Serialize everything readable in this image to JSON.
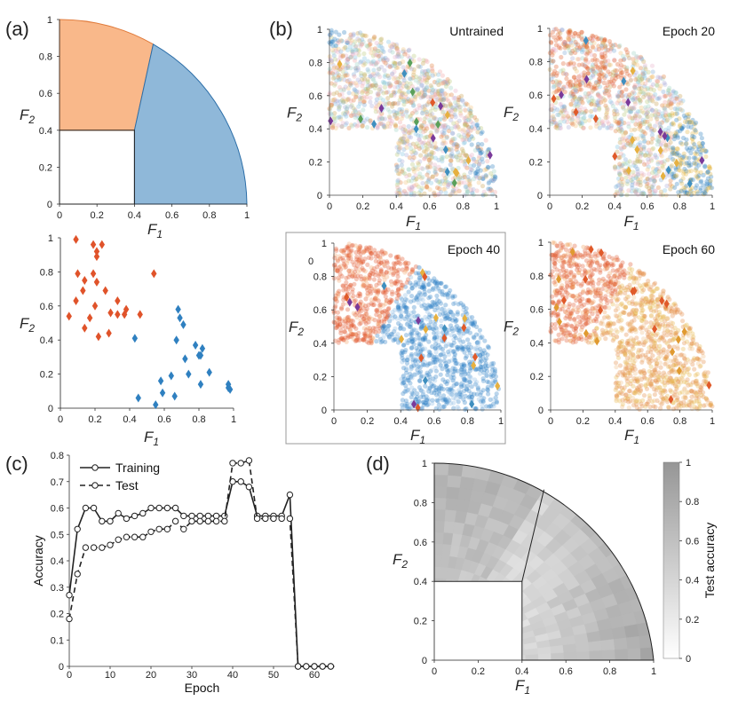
{
  "panels": {
    "a": "(a)",
    "b": "(b)",
    "c": "(c)",
    "d": "(d)"
  },
  "axis_symbols": {
    "f1_main": "F",
    "f1_sub": "1",
    "f2_main": "F",
    "f2_sub": "2"
  },
  "colors": {
    "orange_region": "#f9b88a",
    "blue_region": "#8fb8d9",
    "orange_marker": "#e0532a",
    "blue_marker": "#2f80c0",
    "region_stroke": "#e07a3a",
    "blue_stroke": "#2c6ea8"
  },
  "chart_data": [
    {
      "id": "a_top",
      "type": "region",
      "title": "",
      "xlabel": "F1",
      "ylabel": "F2",
      "xlim": [
        0,
        1
      ],
      "ylim": [
        0,
        1
      ],
      "xticks": [
        "0",
        "0.2",
        "0.4",
        "0.6",
        "0.8",
        "1"
      ],
      "yticks": [
        "0",
        "0.2",
        "0.4",
        "0.6",
        "0.8",
        "1"
      ],
      "regions": [
        {
          "name": "class-orange",
          "condition": "F2 >= 0.4, angle >= 60deg, radius <= 1"
        },
        {
          "name": "class-blue",
          "condition": "F1 >= 0.4, angle <= 60deg, radius <= 1"
        }
      ]
    },
    {
      "id": "a_bottom",
      "type": "scatter",
      "xlabel": "F1",
      "ylabel": "F2",
      "xlim": [
        0,
        1
      ],
      "ylim": [
        0,
        1
      ],
      "xticks": [
        "0",
        "0.2",
        "0.4",
        "0.6",
        "0.8",
        "1"
      ],
      "yticks": [
        "0",
        "0.2",
        "0.4",
        "0.6",
        "0.8",
        "1"
      ],
      "series": [
        {
          "name": "orange",
          "points": [
            [
              0.09,
              0.99
            ],
            [
              0.19,
              0.96
            ],
            [
              0.24,
              0.96
            ],
            [
              0.21,
              0.92
            ],
            [
              0.21,
              0.89
            ],
            [
              0.54,
              0.79
            ],
            [
              0.1,
              0.79
            ],
            [
              0.19,
              0.79
            ],
            [
              0.14,
              0.75
            ],
            [
              0.21,
              0.74
            ],
            [
              0.13,
              0.69
            ],
            [
              0.26,
              0.69
            ],
            [
              0.09,
              0.63
            ],
            [
              0.33,
              0.63
            ],
            [
              0.2,
              0.6
            ],
            [
              0.38,
              0.58
            ],
            [
              0.29,
              0.56
            ],
            [
              0.33,
              0.55
            ],
            [
              0.37,
              0.55
            ],
            [
              0.46,
              0.55
            ],
            [
              0.05,
              0.54
            ],
            [
              0.17,
              0.53
            ],
            [
              0.14,
              0.47
            ],
            [
              0.28,
              0.44
            ],
            [
              0.22,
              0.42
            ]
          ]
        },
        {
          "name": "blue",
          "points": [
            [
              0.68,
              0.58
            ],
            [
              0.69,
              0.53
            ],
            [
              0.71,
              0.49
            ],
            [
              0.43,
              0.41
            ],
            [
              0.67,
              0.4
            ],
            [
              0.78,
              0.37
            ],
            [
              0.82,
              0.35
            ],
            [
              0.72,
              0.29
            ],
            [
              0.81,
              0.31
            ],
            [
              0.8,
              0.31
            ],
            [
              0.74,
              0.2
            ],
            [
              0.86,
              0.21
            ],
            [
              0.64,
              0.19
            ],
            [
              0.58,
              0.16
            ],
            [
              0.81,
              0.14
            ],
            [
              0.97,
              0.14
            ],
            [
              0.97,
              0.12
            ],
            [
              0.98,
              0.11
            ],
            [
              0.59,
              0.09
            ],
            [
              0.66,
              0.07
            ],
            [
              0.45,
              0.06
            ],
            [
              0.55,
              0.02
            ]
          ]
        }
      ]
    },
    {
      "id": "b1",
      "type": "scatter-density",
      "title": "Untrained",
      "xlabel": "F1",
      "ylabel": "F2",
      "xlim": [
        0,
        1
      ],
      "ylim": [
        0,
        1
      ],
      "xticks": [
        "0",
        "0.2",
        "0.4",
        "0.6",
        "0.8",
        "1"
      ],
      "yticks": [
        "0",
        "0.2",
        "0.4",
        "0.6",
        "0.8",
        "1"
      ]
    },
    {
      "id": "b2",
      "type": "scatter-density",
      "title": "Epoch 20",
      "xlabel": "F1",
      "ylabel": "F2",
      "xlim": [
        0,
        1
      ],
      "ylim": [
        0,
        1
      ],
      "xticks": [
        "0",
        "0.2",
        "0.4",
        "0.6",
        "0.8",
        "1"
      ],
      "yticks": [
        "0",
        "0.2",
        "0.4",
        "0.6",
        "0.8",
        "1"
      ]
    },
    {
      "id": "b3",
      "type": "scatter-density",
      "title": "Epoch 40",
      "xlabel": "F1",
      "ylabel": "F2",
      "xlim": [
        0,
        1
      ],
      "ylim": [
        0,
        1
      ],
      "xticks": [
        "0",
        "0.2",
        "0.4",
        "0.6",
        "0.8",
        "1"
      ],
      "yticks": [
        "0",
        "0.2",
        "0.4",
        "0.6",
        "0.8",
        "1"
      ],
      "extra_label": "0"
    },
    {
      "id": "b4",
      "type": "scatter-density",
      "title": "Epoch 60",
      "xlabel": "F1",
      "ylabel": "F2",
      "xlim": [
        0,
        1
      ],
      "ylim": [
        0,
        1
      ],
      "xticks": [
        "0",
        "0.2",
        "0.4",
        "0.6",
        "0.8",
        "1"
      ],
      "yticks": [
        "0",
        "0.2",
        "0.4",
        "0.6",
        "0.8",
        "1"
      ]
    },
    {
      "id": "c",
      "type": "line",
      "xlabel": "Epoch",
      "ylabel": "Accuracy",
      "xlim": [
        0,
        65
      ],
      "ylim": [
        0,
        0.8
      ],
      "xticks": [
        "0",
        "10",
        "20",
        "30",
        "40",
        "50",
        "60"
      ],
      "yticks": [
        "0",
        "0.1",
        "0.2",
        "0.3",
        "0.4",
        "0.5",
        "0.6",
        "0.7",
        "0.8"
      ],
      "legend": [
        "Training",
        "Test"
      ],
      "series": [
        {
          "name": "Training",
          "x": [
            0,
            2,
            4,
            6,
            8,
            10,
            12,
            14,
            16,
            18,
            20,
            22,
            24,
            26,
            28,
            30,
            32,
            34,
            36,
            38,
            40,
            42,
            44,
            46,
            48,
            50,
            52,
            54,
            56,
            58,
            60,
            62,
            64
          ],
          "values": [
            0.27,
            0.52,
            0.6,
            0.6,
            0.55,
            0.55,
            0.58,
            0.56,
            0.57,
            0.58,
            0.6,
            0.6,
            0.6,
            0.6,
            0.57,
            0.57,
            0.57,
            0.57,
            0.57,
            0.57,
            0.7,
            0.7,
            0.68,
            0.57,
            0.57,
            0.57,
            0.57,
            0.65,
            0,
            0,
            0,
            0,
            0
          ]
        },
        {
          "name": "Test",
          "x": [
            0,
            2,
            4,
            6,
            8,
            10,
            12,
            14,
            16,
            18,
            20,
            22,
            24,
            26,
            28,
            30,
            32,
            34,
            36,
            38,
            40,
            42,
            44,
            46,
            48,
            50,
            52,
            54,
            56,
            58,
            60,
            62,
            64
          ],
          "values": [
            0.18,
            0.35,
            0.45,
            0.45,
            0.45,
            0.46,
            0.48,
            0.49,
            0.49,
            0.49,
            0.51,
            0.52,
            0.52,
            0.55,
            0.52,
            0.55,
            0.55,
            0.55,
            0.55,
            0.55,
            0.77,
            0.77,
            0.78,
            0.56,
            0.56,
            0.56,
            0.56,
            0.56,
            0,
            0,
            0,
            0,
            0
          ]
        }
      ]
    },
    {
      "id": "d",
      "type": "heatmap",
      "xlabel": "F1",
      "ylabel": "F2",
      "xlim": [
        0,
        1
      ],
      "ylim": [
        0,
        1
      ],
      "xticks": [
        "0",
        "0.2",
        "0.4",
        "0.6",
        "0.8",
        "1"
      ],
      "yticks": [
        "0",
        "0.2",
        "0.4",
        "0.6",
        "0.8",
        "1"
      ],
      "colorbar": {
        "label": "Test accuracy",
        "ticks": [
          "0",
          "0.2",
          "0.4",
          "0.6",
          "0.8",
          "1"
        ],
        "range": [
          0,
          1
        ]
      }
    }
  ]
}
